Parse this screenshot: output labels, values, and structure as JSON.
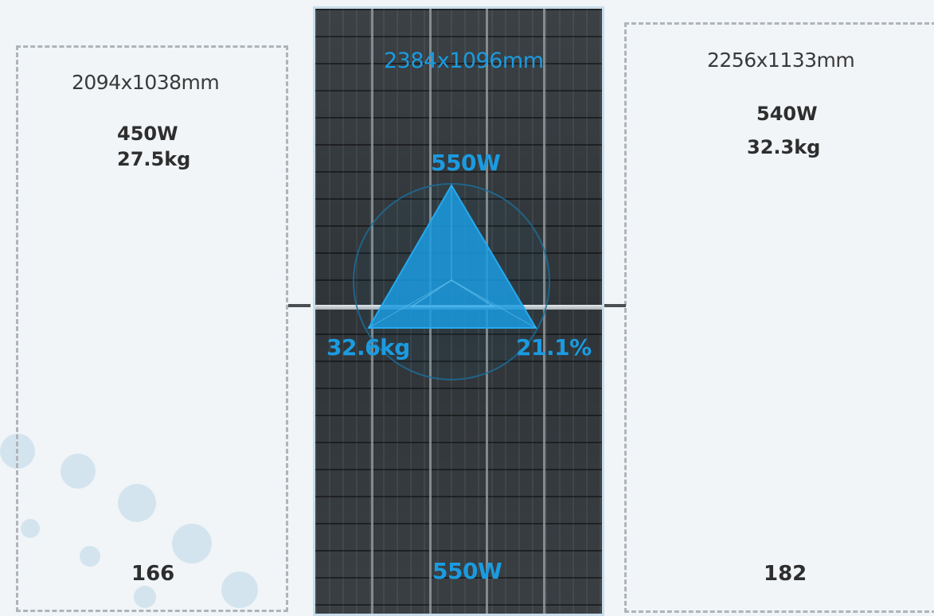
{
  "left_module": {
    "dimensions": "2094x1038mm",
    "power": "450W",
    "weight": "27.5kg",
    "cells": "166"
  },
  "center_module": {
    "dimensions": "2384x1096mm",
    "power_top": "550W",
    "weight": "32.6kg",
    "efficiency": "21.1%",
    "power_bottom": "550W"
  },
  "right_module": {
    "dimensions": "2256x1133mm",
    "power": "540W",
    "weight": "32.3kg",
    "cells": "182"
  },
  "colors": {
    "accent": "#1b9be0",
    "panel": "#33383c",
    "background": "#f1f5f8"
  }
}
